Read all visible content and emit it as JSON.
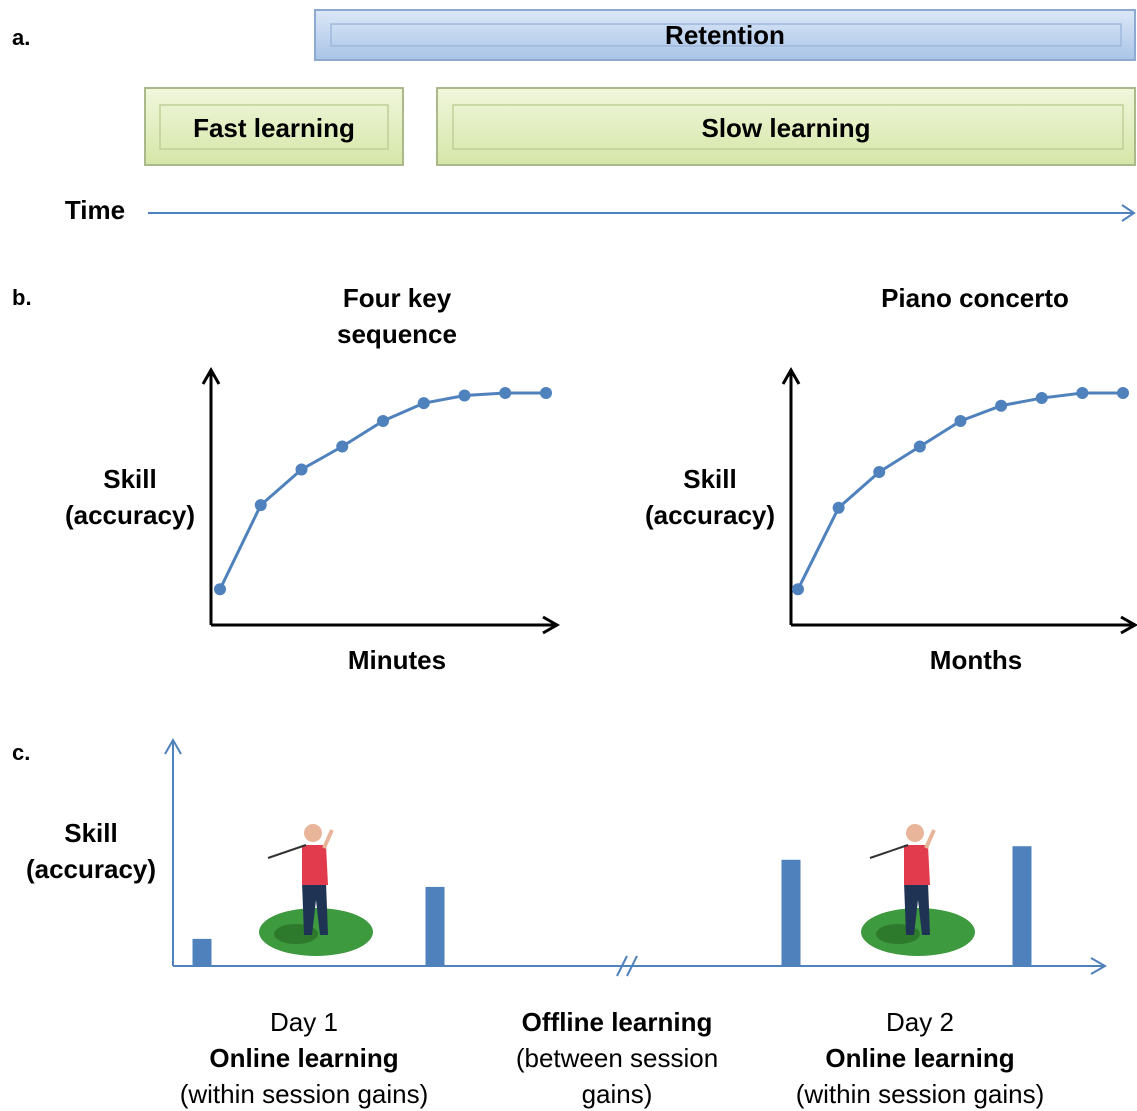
{
  "panel_labels": [
    "a.",
    "b.",
    "c."
  ],
  "panel_a": {
    "retention": "Retention",
    "fast": "Fast learning",
    "slow": "Slow learning",
    "time": "Time"
  },
  "chart_data": [
    {
      "type": "line",
      "title": "Four key sequence",
      "y_label": "Skill (accuracy)",
      "x_label": "Minutes",
      "categories": [
        null,
        null,
        null,
        null,
        null,
        null,
        null,
        null,
        null
      ],
      "values": [
        14,
        47,
        61,
        70,
        80,
        87,
        90,
        91,
        91
      ],
      "ylim": [
        0,
        100
      ],
      "color": "#4f81bd"
    },
    {
      "type": "line",
      "title": "Piano concerto",
      "y_label": "Skill (accuracy)",
      "x_label": "Months",
      "categories": [
        null,
        null,
        null,
        null,
        null,
        null,
        null,
        null,
        null
      ],
      "values": [
        14,
        46,
        60,
        70,
        80,
        86,
        89,
        91,
        91
      ],
      "ylim": [
        0,
        100
      ],
      "color": "#4f81bd"
    },
    {
      "type": "bar",
      "y_label": "Skill (accuracy)",
      "categories": [
        null,
        null,
        null,
        null
      ],
      "values": [
        12,
        35,
        47,
        53
      ],
      "ylim": [
        0,
        100
      ],
      "color": "#4f81bd",
      "groups": [
        {
          "day": "Day 1",
          "title": "Online learning",
          "note": "(within session gains)"
        },
        {
          "title": "Offline learning",
          "note": "(between session gains)"
        },
        {
          "day": "Day 2",
          "title": "Online learning",
          "note": "(within session gains)"
        }
      ]
    }
  ]
}
